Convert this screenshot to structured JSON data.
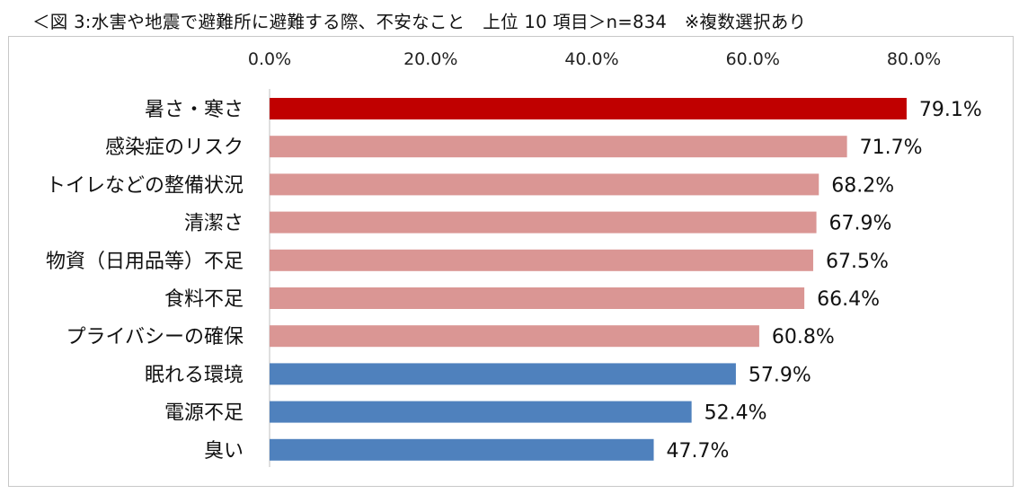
{
  "title": "＜図 3:水害や地震で避難所に避難する際、不安なこと　上位 10 項目＞n=834　※複数選択あり",
  "colors": {
    "top": "#C00000",
    "middle": "#DA9694",
    "bottom": "#4F81BD",
    "axis": "#bfbfbf"
  },
  "chart_data": {
    "type": "bar",
    "orientation": "horizontal",
    "categories": [
      "暑さ・寒さ",
      "感染症のリスク",
      "トイレなどの整備状況",
      "清潔さ",
      "物資（日用品等）不足",
      "食料不足",
      "プライバシーの確保",
      "眠れる環境",
      "電源不足",
      "臭い"
    ],
    "values": [
      79.1,
      71.7,
      68.2,
      67.9,
      67.5,
      66.4,
      60.8,
      57.9,
      52.4,
      47.7
    ],
    "data_labels": [
      "79.1%",
      "71.7%",
      "68.2%",
      "67.9%",
      "67.5%",
      "66.4%",
      "60.8%",
      "57.9%",
      "52.4%",
      "47.7%"
    ],
    "bar_colors": [
      "#C00000",
      "#DA9694",
      "#DA9694",
      "#DA9694",
      "#DA9694",
      "#DA9694",
      "#DA9694",
      "#4F81BD",
      "#4F81BD",
      "#4F81BD"
    ],
    "xlim": [
      0,
      80
    ],
    "xticks": [
      0,
      20,
      40,
      60,
      80
    ],
    "xtick_labels": [
      "0.0%",
      "20.0%",
      "40.0%",
      "60.0%",
      "80.0%"
    ],
    "xaxis_position": "top",
    "grid": false,
    "legend": "none"
  }
}
